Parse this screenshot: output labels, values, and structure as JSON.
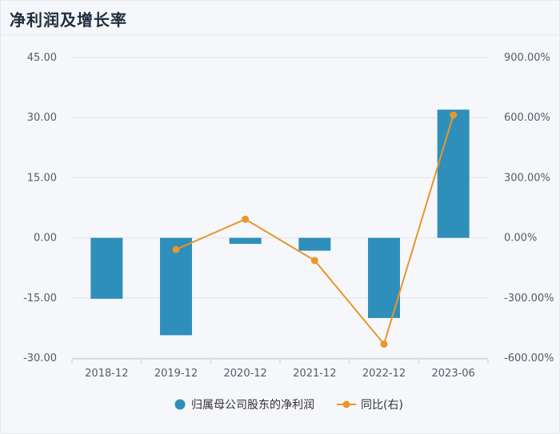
{
  "header": {
    "title": "净利润及增长率"
  },
  "chart_data": {
    "type": "bar",
    "categories": [
      "2018-12",
      "2019-12",
      "2020-12",
      "2021-12",
      "2022-12",
      "2023-06"
    ],
    "y_left": {
      "ticks": [
        "45.00",
        "30.00",
        "15.00",
        "0.00",
        "-15.00",
        "-30.00"
      ],
      "ylim": [
        -30,
        45
      ]
    },
    "y_right": {
      "ticks": [
        "900.00%",
        "600.00%",
        "300.00%",
        "0.00%",
        "-300.00%",
        "-600.00%"
      ],
      "ylim": [
        -600,
        900
      ]
    },
    "series": [
      {
        "name": "归属母公司股东的净利润",
        "type": "bar",
        "axis": "left",
        "color": "#2e8fba",
        "values": [
          -15.2,
          -24.3,
          -1.5,
          -3.2,
          -20.0,
          32.0
        ]
      },
      {
        "name": "同比(右)",
        "type": "line",
        "axis": "right",
        "color": "#e8962d",
        "values": [
          null,
          -58,
          93,
          -113,
          -530,
          613
        ]
      }
    ],
    "grid": true,
    "legend": "bottom"
  }
}
